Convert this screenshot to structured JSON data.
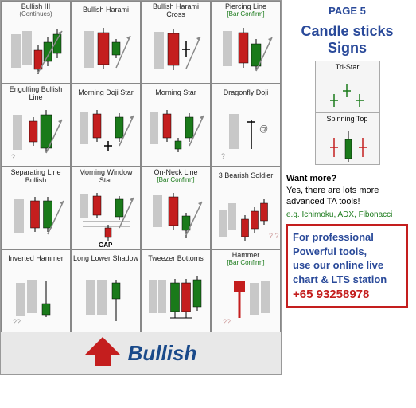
{
  "page_label": "PAGE 5",
  "side_title_l1": "Candle sticks",
  "side_title_l2": "Signs",
  "footer_text": "Bullish",
  "colors": {
    "bull": "#1a7a1a",
    "bear": "#c41e1e",
    "shadow": "#c8c8c8",
    "wick": "#000000",
    "header_blue": "#2a4a9a",
    "accent_red": "#c41e1e",
    "confirm_green": "#1a7a1a"
  },
  "cells": [
    {
      "title": "Bullish III",
      "sub": "(Continues)",
      "pat": "bull3"
    },
    {
      "title": "Bullish Harami",
      "sub": "",
      "pat": "harami"
    },
    {
      "title": "Bullish Harami Cross",
      "sub": "",
      "pat": "harami_cross"
    },
    {
      "title": "Piercing Line",
      "sub": "[Bar Confirm]",
      "pat": "piercing"
    },
    {
      "title": "Engulfing Bullish Line",
      "sub": "",
      "pat": "engulf"
    },
    {
      "title": "Morning Doji Star",
      "sub": "",
      "pat": "morning_doji"
    },
    {
      "title": "Morning Star",
      "sub": "",
      "pat": "morning"
    },
    {
      "title": "Dragonfly Doji",
      "sub": "",
      "pat": "dragonfly"
    },
    {
      "title": "Separating Line Bullish",
      "sub": "",
      "pat": "separating"
    },
    {
      "title": "Morning Window Star",
      "sub": "",
      "pat": "window"
    },
    {
      "title": "On-Neck Line",
      "sub": "[Bar Confirm]",
      "pat": "onneck"
    },
    {
      "title": "3 Bearish Soldier",
      "sub": "",
      "pat": "soldiers"
    },
    {
      "title": "Inverted Hammer",
      "sub": "",
      "pat": "inv_hammer"
    },
    {
      "title": "Long Lower Shadow",
      "sub": "",
      "pat": "long_lower"
    },
    {
      "title": "Tweezer Bottoms",
      "sub": "",
      "pat": "tweezer"
    },
    {
      "title": "Hammer",
      "sub": "[Bar Confirm]",
      "pat": "hammer"
    }
  ],
  "gap_label": "GAP",
  "mini": [
    {
      "title": "Tri-Star",
      "pat": "tristar"
    },
    {
      "title": "Spinning Top",
      "pat": "spinning"
    }
  ],
  "want": {
    "q": "Want more?",
    "a": "Yes, there are lots more advanced TA tools!"
  },
  "eg": "e.g. Ichimoku, ADX, Fibonacci",
  "promo": {
    "l1": "For professional",
    "l2": "Powerful tools,",
    "l3": "use our online live",
    "l4": "chart & LTS station",
    "phone": "+65 93258978"
  }
}
